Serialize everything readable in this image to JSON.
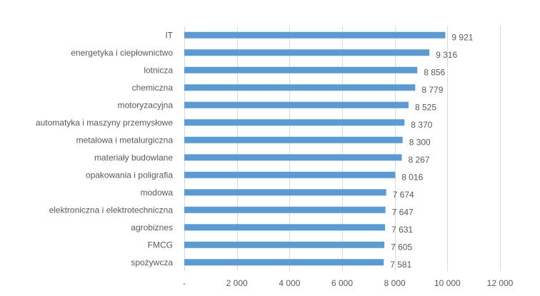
{
  "chart_data": {
    "type": "bar",
    "orientation": "horizontal",
    "categories": [
      "IT",
      "energetyka i ciepłownictwo",
      "lotnicza",
      "chemiczna",
      "motoryzacyjna",
      "automatyka i maszyny przemysłowe",
      "metalowa i metalurgiczna",
      "materiały budowlane",
      "opakowania i poligrafia",
      "modowa",
      "elektroniczna i elektrotechniczna",
      "agrobiznes",
      "FMCG",
      "spożywcza"
    ],
    "values": [
      9921,
      9316,
      8856,
      8779,
      8525,
      8370,
      8300,
      8267,
      8016,
      7674,
      7647,
      7631,
      7605,
      7581
    ],
    "value_labels": [
      "9 921",
      "9 316",
      "8 856",
      "8 779",
      "8 525",
      "8 370",
      "8 300",
      "8 267",
      "8 016",
      "7 674",
      "7 647",
      "7 631",
      "7 605",
      "7 581"
    ],
    "xlim": [
      0,
      12000
    ],
    "xticks": [
      0,
      2000,
      4000,
      6000,
      8000,
      10000,
      12000
    ],
    "xtick_labels": [
      "-",
      "2 000",
      "4 000",
      "6 000",
      "8 000",
      "10 000",
      "12 000"
    ],
    "grid": "vertical",
    "legend": "none",
    "bar_color": "#5b9bd5",
    "grid_color": "#d9d9d9",
    "text_color": "#595959"
  }
}
